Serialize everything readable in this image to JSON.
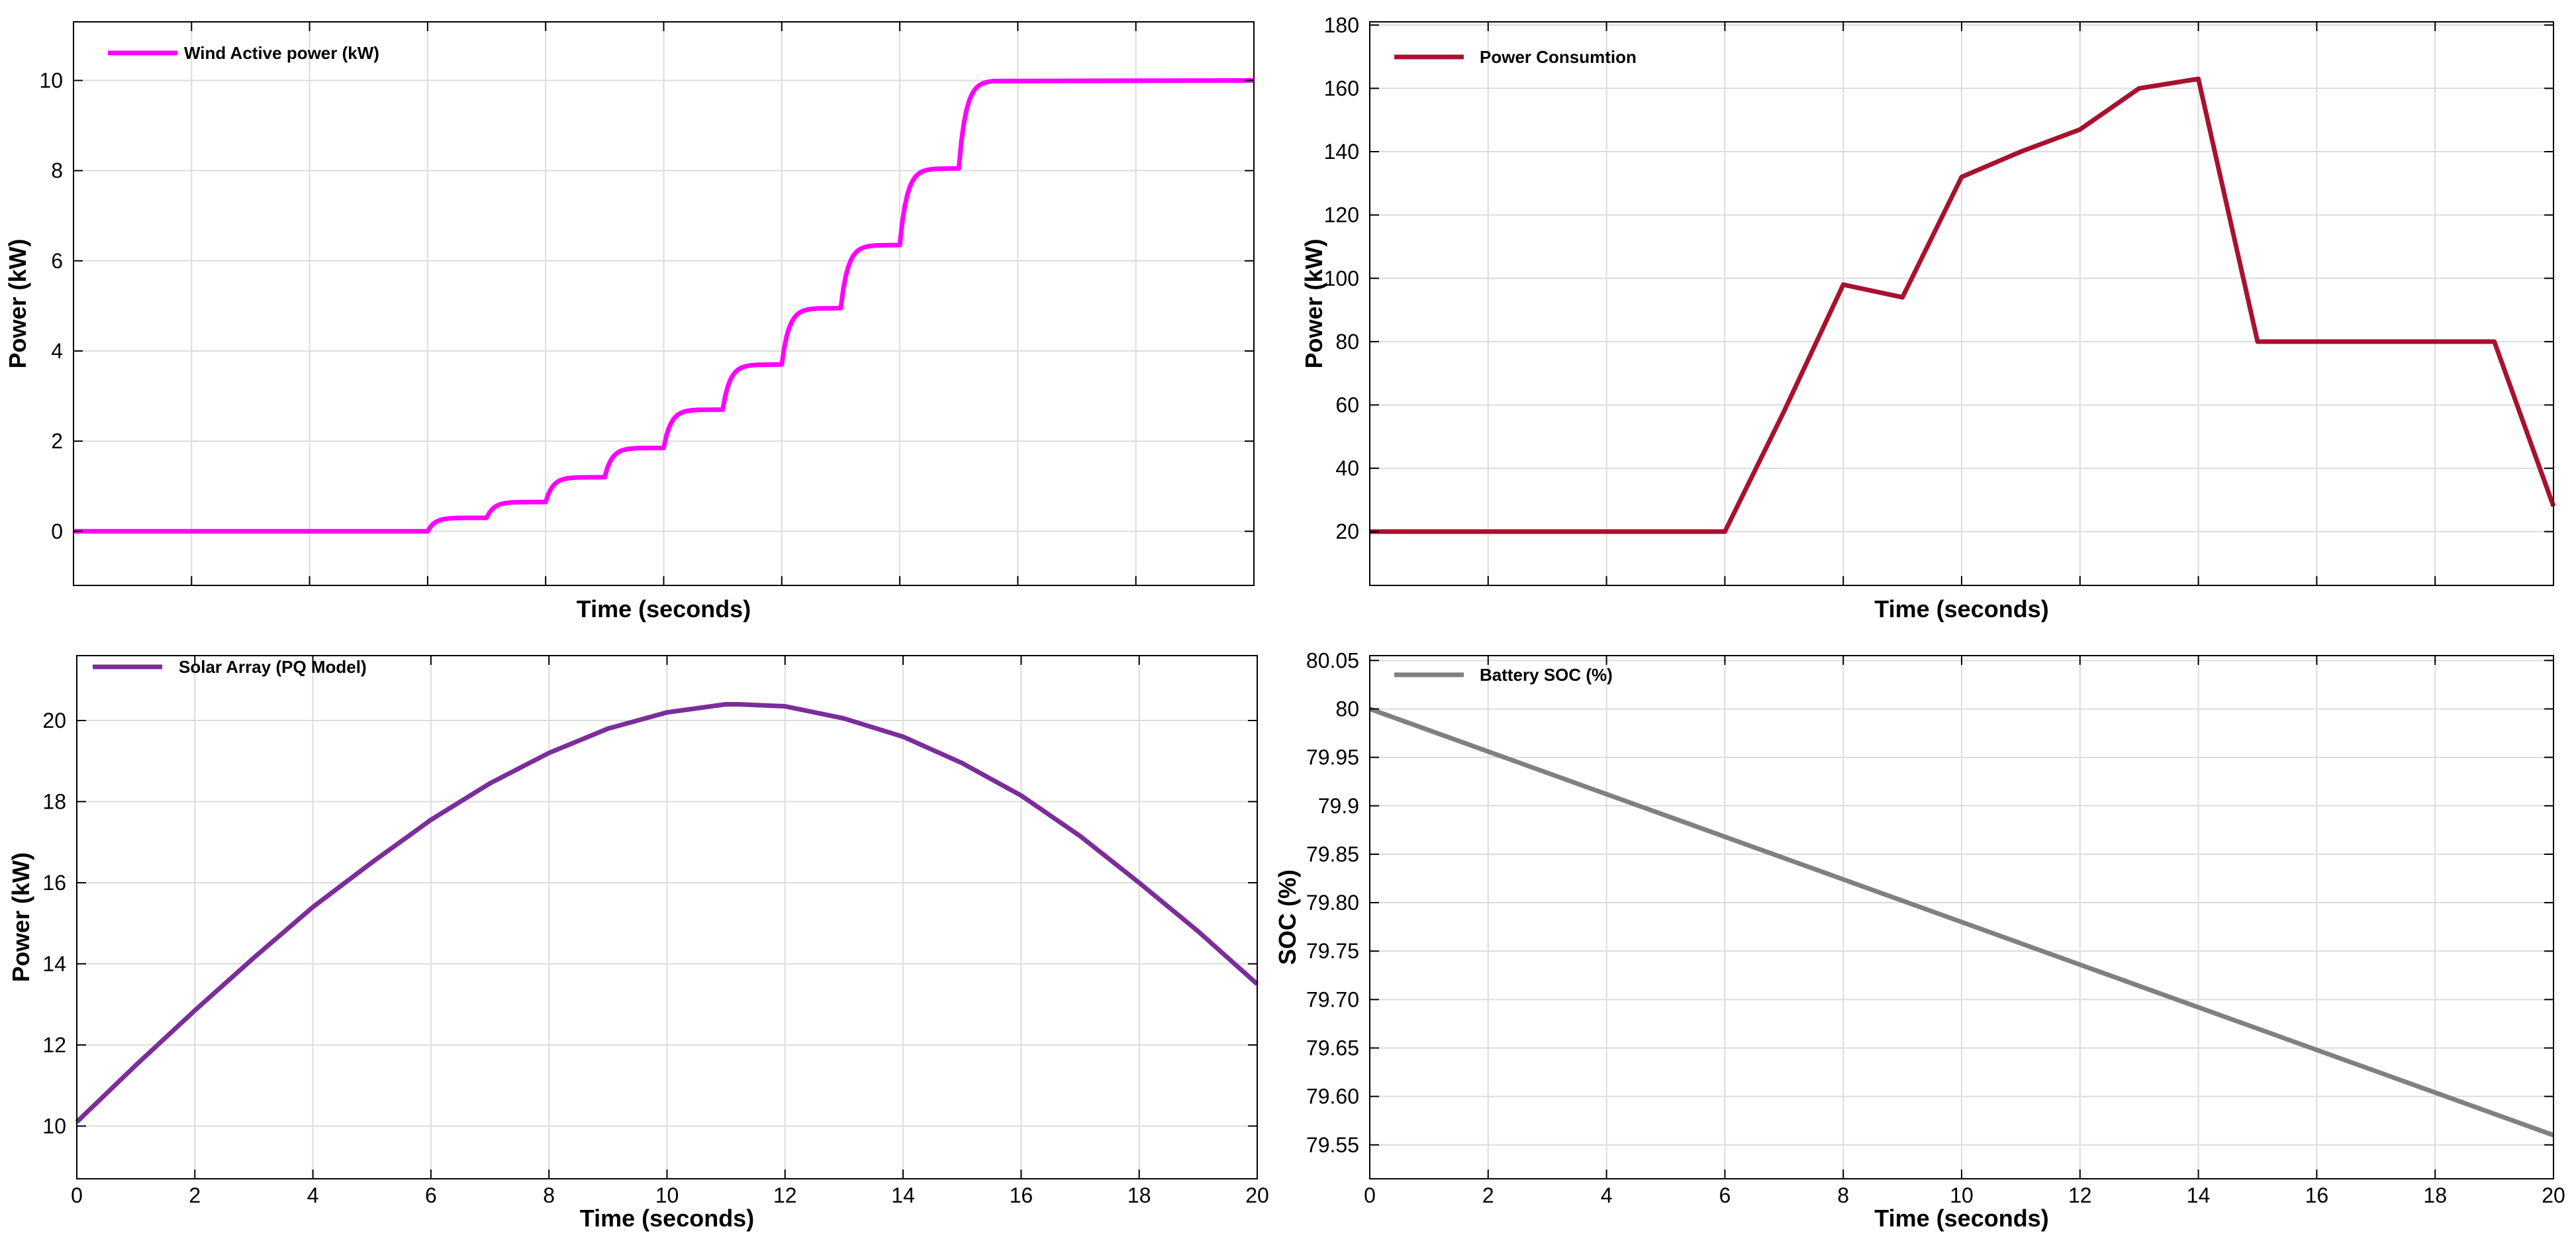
{
  "chart_data": [
    {
      "type": "line",
      "xlabel": "Time (seconds)",
      "ylabel": "Power (kW)",
      "xlim": [
        0,
        20
      ],
      "ylim": [
        -1.2,
        11.3
      ],
      "xticks": [
        0,
        2,
        4,
        6,
        8,
        10,
        12,
        14,
        16,
        18,
        20
      ],
      "xtick_labels_shown": false,
      "yticks": [
        0,
        2,
        4,
        6,
        8,
        10
      ],
      "grid": true,
      "legend_position": "top-left",
      "series": [
        {
          "name": "Wind Active power (kW)",
          "color": "#ff00ff",
          "line": "step",
          "x": [
            0,
            6,
            7,
            8,
            9,
            10,
            11,
            12,
            13,
            14,
            15,
            20
          ],
          "y": [
            0,
            0.3,
            0.65,
            1.2,
            1.85,
            2.7,
            3.7,
            4.95,
            6.35,
            8.05,
            10.0,
            10.0
          ]
        }
      ]
    },
    {
      "type": "line",
      "xlabel": "Time (seconds)",
      "ylabel": "Power (kW)",
      "xlim": [
        0,
        20
      ],
      "ylim": [
        3,
        181
      ],
      "xticks": [
        0,
        2,
        4,
        6,
        8,
        10,
        12,
        14,
        16,
        18,
        20
      ],
      "xtick_labels_shown": false,
      "yticks": [
        20,
        40,
        60,
        80,
        100,
        120,
        140,
        160,
        180
      ],
      "grid": true,
      "legend_position": "top-left",
      "series": [
        {
          "name": "Power Consumtion",
          "color": "#a8122e",
          "x": [
            0,
            6,
            7,
            8,
            9,
            10,
            11,
            12,
            13,
            14,
            15,
            19,
            20
          ],
          "y": [
            20,
            20,
            58,
            98,
            94,
            132,
            140,
            147,
            160,
            163,
            80,
            80,
            28
          ]
        }
      ]
    },
    {
      "type": "line",
      "xlabel": "Time (seconds)",
      "ylabel": "Power (kW)",
      "xlim": [
        0,
        20
      ],
      "ylim": [
        8.7,
        21.6
      ],
      "xticks": [
        0,
        2,
        4,
        6,
        8,
        10,
        12,
        14,
        16,
        18,
        20
      ],
      "yticks": [
        10,
        12,
        14,
        16,
        18,
        20
      ],
      "grid": true,
      "legend_position": "top-left",
      "series": [
        {
          "name": "Solar Array (PQ Model)",
          "color": "#7b2d9a",
          "x": [
            0,
            1,
            2,
            3,
            4,
            5,
            6,
            7,
            8,
            9,
            10,
            11,
            11.2,
            12,
            13,
            14,
            15,
            16,
            17,
            18,
            19,
            20
          ],
          "y": [
            10.1,
            11.5,
            12.85,
            14.15,
            15.4,
            16.5,
            17.55,
            18.45,
            19.2,
            19.8,
            20.2,
            20.4,
            20.4,
            20.35,
            20.05,
            19.6,
            18.95,
            18.15,
            17.15,
            16.0,
            14.8,
            13.5
          ]
        }
      ]
    },
    {
      "type": "line",
      "xlabel": "Time (seconds)",
      "ylabel": "SOC (%)",
      "xlim": [
        0,
        20
      ],
      "ylim": [
        79.515,
        80.055
      ],
      "xticks": [
        0,
        2,
        4,
        6,
        8,
        10,
        12,
        14,
        16,
        18,
        20
      ],
      "yticks": [
        79.55,
        79.6,
        79.65,
        79.7,
        79.75,
        79.8,
        79.85,
        79.9,
        79.95,
        80,
        80.05
      ],
      "ytick_labels": [
        "79.55",
        "79.60",
        "79.65",
        "79.70",
        "79.75",
        "79.80",
        "79.85",
        "79.9",
        "79.95",
        "80",
        "80.05"
      ],
      "grid": true,
      "legend_position": "top-left",
      "series": [
        {
          "name": "Battery SOC (%)",
          "color": "#808080",
          "x": [
            0,
            20
          ],
          "y": [
            80.0,
            79.56
          ]
        }
      ]
    }
  ]
}
